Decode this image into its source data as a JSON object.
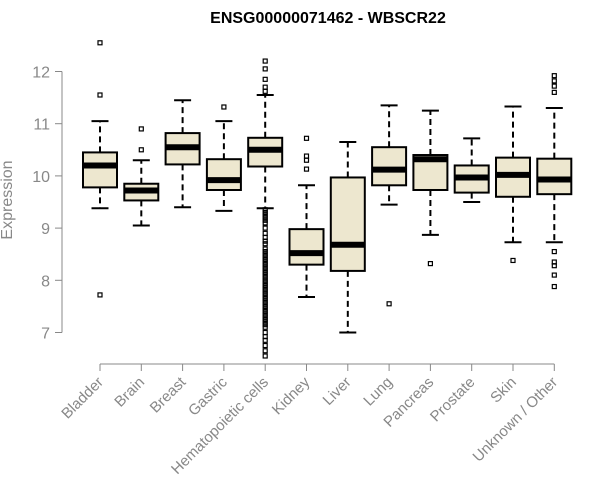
{
  "chart_data": {
    "type": "boxplot",
    "title": "ENSG00000071462 - WBSCR22",
    "xlabel": "",
    "ylabel": "Expression",
    "ylim": [
      6.4,
      12.7
    ],
    "yticks": [
      7,
      8,
      9,
      10,
      11,
      12
    ],
    "colors": {
      "box_fill": "#EDE7CF",
      "box_stroke": "#000000",
      "axis": "#888888"
    },
    "categories": [
      "Bladder",
      "Brain",
      "Breast",
      "Gastric",
      "Hematopoietic cells",
      "Kidney",
      "Liver",
      "Lung",
      "Pancreas",
      "Prostate",
      "Skin",
      "Unknown / Other"
    ],
    "boxes": [
      {
        "name": "Bladder",
        "whisker_low": 9.38,
        "q1": 9.78,
        "median": 10.2,
        "q3": 10.45,
        "whisker_high": 11.05,
        "outliers": [
          12.55,
          11.55,
          7.72
        ]
      },
      {
        "name": "Brain",
        "whisker_low": 9.05,
        "q1": 9.53,
        "median": 9.72,
        "q3": 9.85,
        "whisker_high": 10.3,
        "outliers": [
          10.9,
          10.5
        ]
      },
      {
        "name": "Breast",
        "whisker_low": 9.4,
        "q1": 10.22,
        "median": 10.55,
        "q3": 10.82,
        "whisker_high": 11.45,
        "outliers": []
      },
      {
        "name": "Gastric",
        "whisker_low": 9.33,
        "q1": 9.73,
        "median": 9.92,
        "q3": 10.32,
        "whisker_high": 11.05,
        "outliers": [
          11.32
        ]
      },
      {
        "name": "Hematopoietic cells",
        "whisker_low": 9.38,
        "q1": 10.18,
        "median": 10.5,
        "q3": 10.73,
        "whisker_high": 11.55,
        "outliers": [
          12.2,
          12.05,
          11.85,
          11.7,
          11.62,
          9.35,
          9.3,
          9.25,
          9.2,
          9.15,
          9.1,
          9.0,
          8.9,
          8.82,
          8.75,
          8.7,
          8.6,
          8.55,
          8.5,
          8.45,
          8.4,
          8.35,
          8.3,
          8.25,
          8.2,
          8.15,
          8.1,
          8.05,
          8.0,
          7.95,
          7.9,
          7.85,
          7.8,
          7.75,
          7.7,
          7.65,
          7.6,
          7.55,
          7.5,
          7.45,
          7.4,
          7.35,
          7.3,
          7.25,
          7.2,
          7.15,
          7.1,
          7.0,
          6.92,
          6.85,
          6.75,
          6.65,
          6.55
        ]
      },
      {
        "name": "Kidney",
        "whisker_low": 7.68,
        "q1": 8.3,
        "median": 8.52,
        "q3": 8.98,
        "whisker_high": 9.82,
        "outliers": [
          10.72,
          10.38,
          10.3,
          10.13
        ]
      },
      {
        "name": "Liver",
        "whisker_low": 7.0,
        "q1": 8.18,
        "median": 8.68,
        "q3": 9.97,
        "whisker_high": 10.65,
        "outliers": []
      },
      {
        "name": "Lung",
        "whisker_low": 9.45,
        "q1": 9.82,
        "median": 10.12,
        "q3": 10.55,
        "whisker_high": 11.35,
        "outliers": [
          7.55
        ]
      },
      {
        "name": "Pancreas",
        "whisker_low": 8.87,
        "q1": 9.73,
        "median": 10.32,
        "q3": 10.4,
        "whisker_high": 11.25,
        "outliers": [
          8.32
        ]
      },
      {
        "name": "Prostate",
        "whisker_low": 9.5,
        "q1": 9.68,
        "median": 9.97,
        "q3": 10.2,
        "whisker_high": 10.72,
        "outliers": []
      },
      {
        "name": "Skin",
        "whisker_low": 8.73,
        "q1": 9.6,
        "median": 10.02,
        "q3": 10.35,
        "whisker_high": 11.33,
        "outliers": [
          8.38
        ]
      },
      {
        "name": "Unknown / Other",
        "whisker_low": 8.73,
        "q1": 9.65,
        "median": 9.93,
        "q3": 10.33,
        "whisker_high": 11.3,
        "outliers": [
          11.92,
          11.82,
          11.72,
          11.6,
          8.55,
          8.35,
          8.28,
          8.1,
          7.88
        ]
      }
    ]
  }
}
